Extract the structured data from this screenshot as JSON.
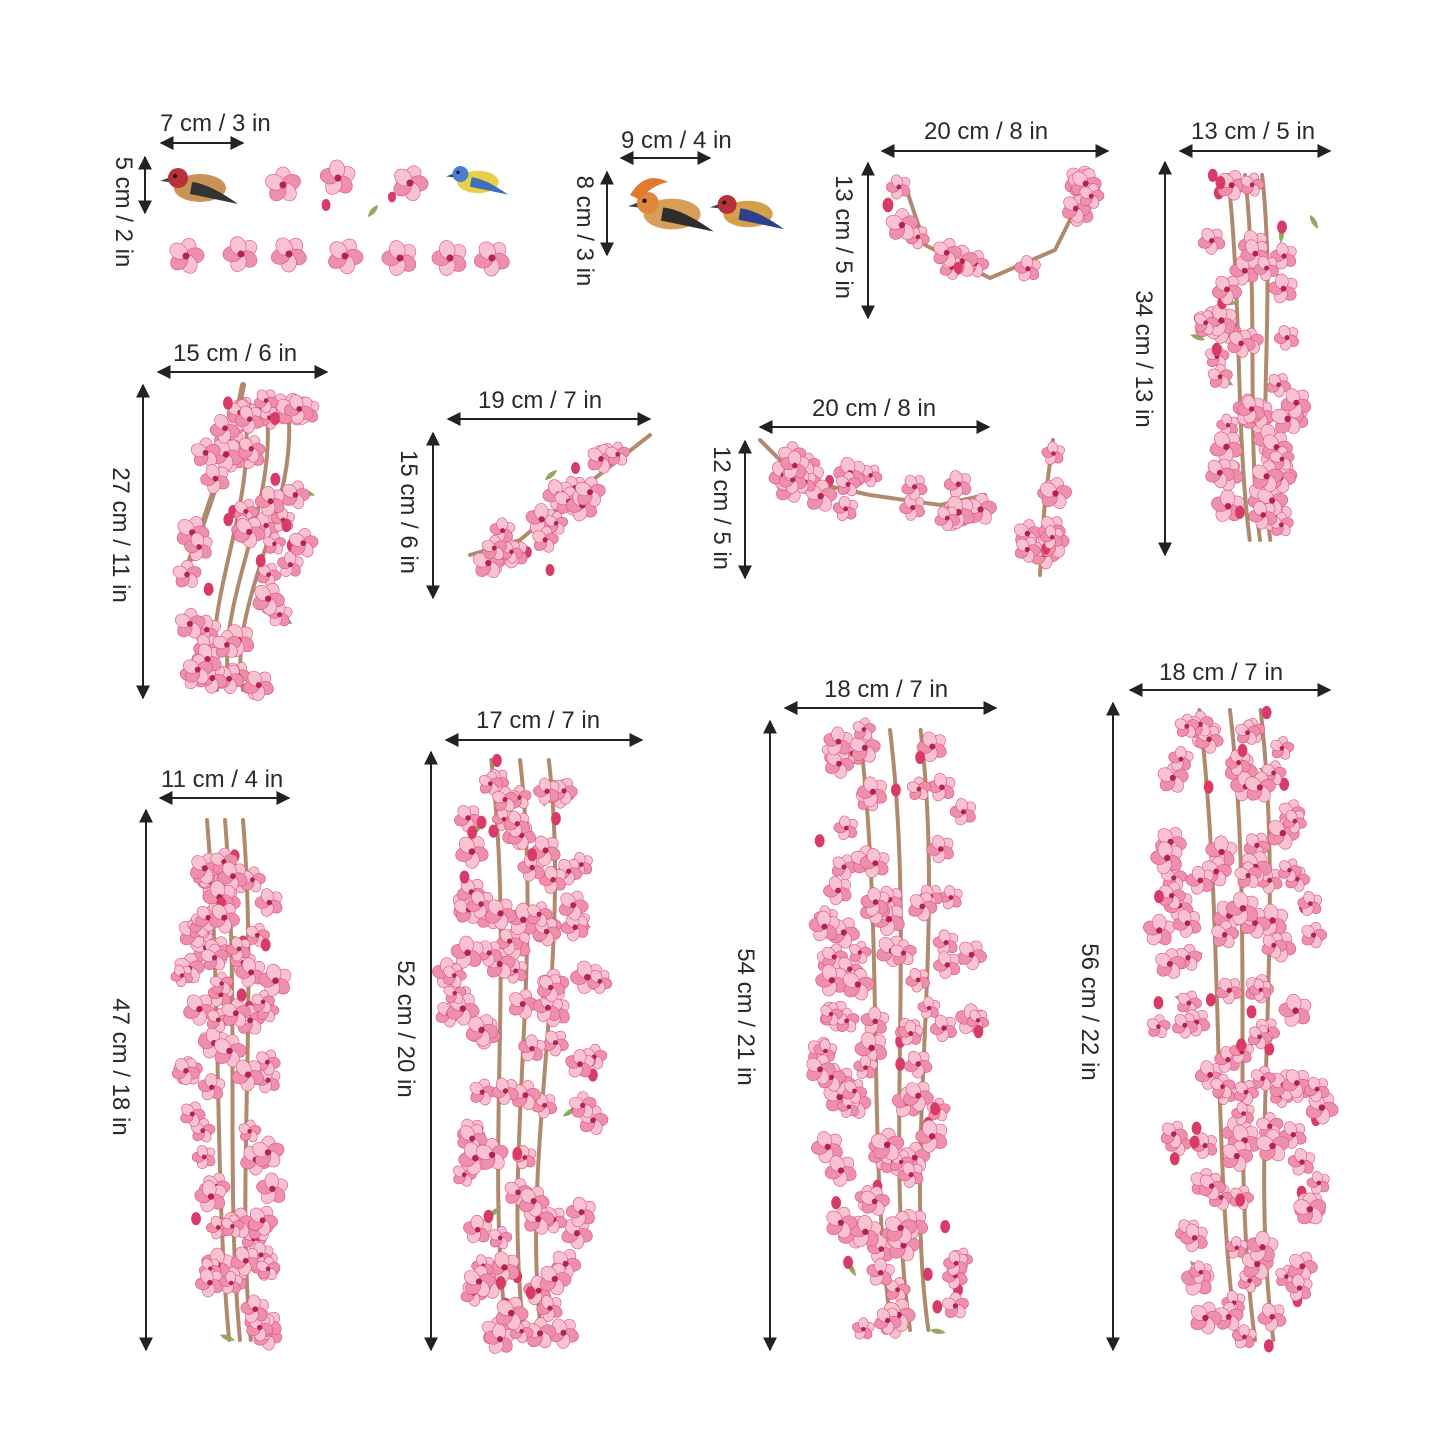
{
  "colors": {
    "petal": "#ef8fae",
    "petal_light": "#f8c2d2",
    "petal_dark": "#d9547f",
    "center": "#b3234f",
    "bud": "#d83b68",
    "branch": "#b08a6e",
    "leaf": "#8fa862",
    "dimension_line": "#222222"
  },
  "labels": {
    "g1_w": "7 cm / 3 in",
    "g1_h": "5 cm / 2 in",
    "g2_w": "9 cm / 4 in",
    "g2_h": "8 cm / 3 in",
    "g3_w": "20 cm / 8 in",
    "g3_h": "13 cm / 5 in",
    "g4_w": "13 cm / 5 in",
    "g4_h": "34 cm / 13 in",
    "g5_w": "15 cm / 6 in",
    "g5_h": "27 cm / 11 in",
    "g6_w": "19 cm / 7 in",
    "g6_h": "15 cm / 6 in",
    "g7_w": "20 cm / 8 in",
    "g7_h": "12 cm / 5 in",
    "g8_w": "11 cm / 4 in",
    "g8_h": "47 cm / 18 in",
    "g9_w": "17 cm / 7 in",
    "g9_h": "52 cm / 20 in",
    "g10_w": "18 cm / 7 in",
    "g10_h": "54 cm / 21 in",
    "g11_w": "18 cm / 7 in",
    "g11_h": "56 cm / 22 in"
  }
}
